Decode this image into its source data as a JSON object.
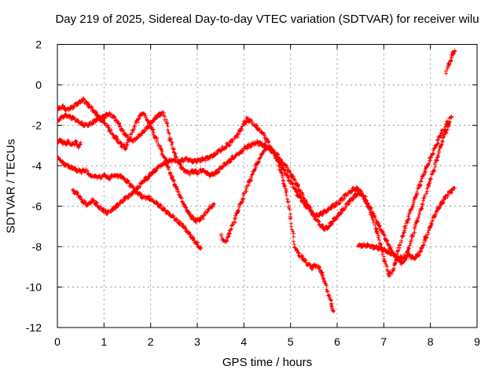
{
  "chart_data": {
    "type": "scatter",
    "title": "Day 219 of 2025, Sidereal Day-to-day VTEC variation (SDTVAR) for receiver wilu",
    "xlabel": "GPS time / hours",
    "ylabel": "SDTVAR / TECUs",
    "xlim": [
      0,
      9
    ],
    "ylim": [
      -12,
      2
    ],
    "xticks": [
      0,
      1,
      2,
      3,
      4,
      5,
      6,
      7,
      8,
      9
    ],
    "yticks": [
      2,
      0,
      -2,
      -4,
      -6,
      -8,
      -10,
      -12
    ],
    "grid": true,
    "legend": "none",
    "marker": "plus",
    "colors": {
      "data": "#ff0000",
      "grid": "#9a9a9a",
      "axis": "#000000",
      "background": "#ffffff",
      "text": "#000000"
    },
    "series": [
      {
        "name": "trace-1",
        "points": [
          [
            0,
            -1.2
          ],
          [
            0.1,
            -1.05
          ],
          [
            0.2,
            -1.2
          ],
          [
            0.3,
            -1.1
          ],
          [
            0.42,
            -0.9
          ],
          [
            0.55,
            -0.72
          ],
          [
            0.65,
            -0.95
          ],
          [
            0.78,
            -1.3
          ],
          [
            0.9,
            -1.6
          ],
          [
            1.0,
            -1.85
          ],
          [
            1.1,
            -2.15
          ],
          [
            1.2,
            -2.5
          ],
          [
            1.35,
            -2.9
          ],
          [
            1.45,
            -3.1
          ],
          [
            1.55,
            -2.6
          ],
          [
            1.65,
            -2.0
          ],
          [
            1.75,
            -1.55
          ],
          [
            1.82,
            -1.37
          ],
          [
            1.92,
            -1.7
          ],
          [
            2.02,
            -2.2
          ],
          [
            2.12,
            -2.7
          ],
          [
            2.22,
            -3.2
          ],
          [
            2.32,
            -3.8
          ],
          [
            2.42,
            -4.4
          ],
          [
            2.55,
            -5.1
          ],
          [
            2.7,
            -5.9
          ],
          [
            2.85,
            -6.45
          ],
          [
            2.95,
            -6.7
          ],
          [
            3.05,
            -6.65
          ],
          [
            3.15,
            -6.4
          ],
          [
            3.25,
            -6.1
          ],
          [
            3.35,
            -5.9
          ]
        ]
      },
      {
        "name": "trace-2",
        "points": [
          [
            0,
            -1.75
          ],
          [
            0.1,
            -1.6
          ],
          [
            0.2,
            -1.5
          ],
          [
            0.3,
            -1.6
          ],
          [
            0.4,
            -1.75
          ],
          [
            0.5,
            -1.9
          ],
          [
            0.6,
            -2.0
          ],
          [
            0.7,
            -1.9
          ],
          [
            0.8,
            -1.75
          ],
          [
            0.9,
            -1.65
          ],
          [
            1.0,
            -1.55
          ],
          [
            1.1,
            -1.4
          ],
          [
            1.2,
            -1.55
          ],
          [
            1.3,
            -1.9
          ],
          [
            1.4,
            -2.3
          ],
          [
            1.5,
            -2.6
          ],
          [
            1.6,
            -2.75
          ],
          [
            1.7,
            -2.6
          ],
          [
            1.8,
            -2.4
          ],
          [
            1.9,
            -2.15
          ],
          [
            2.0,
            -1.9
          ],
          [
            2.1,
            -1.6
          ],
          [
            2.2,
            -1.45
          ],
          [
            2.25,
            -1.4
          ],
          [
            2.32,
            -1.7
          ],
          [
            2.4,
            -2.6
          ],
          [
            2.5,
            -3.3
          ],
          [
            2.6,
            -3.9
          ],
          [
            2.7,
            -4.2
          ],
          [
            2.8,
            -4.35
          ],
          [
            2.9,
            -4.25
          ],
          [
            3.0,
            -4.3
          ],
          [
            3.1,
            -4.2
          ],
          [
            3.2,
            -4.35
          ],
          [
            3.3,
            -4.45
          ],
          [
            3.4,
            -4.3
          ],
          [
            3.5,
            -4.05
          ],
          [
            3.6,
            -3.9
          ],
          [
            3.7,
            -3.7
          ],
          [
            3.8,
            -3.5
          ],
          [
            3.9,
            -3.35
          ],
          [
            4.0,
            -3.15
          ],
          [
            4.1,
            -3.0
          ],
          [
            4.2,
            -2.9
          ],
          [
            4.3,
            -2.85
          ],
          [
            4.4,
            -2.95
          ],
          [
            4.5,
            -3.1
          ],
          [
            4.6,
            -3.25
          ],
          [
            4.7,
            -3.45
          ],
          [
            4.85,
            -3.9
          ],
          [
            5.0,
            -4.4
          ],
          [
            5.15,
            -5.0
          ],
          [
            5.3,
            -5.7
          ],
          [
            5.45,
            -6.3
          ],
          [
            5.6,
            -6.8
          ],
          [
            5.7,
            -7.1
          ],
          [
            5.8,
            -7.0
          ],
          [
            5.95,
            -6.6
          ],
          [
            6.1,
            -6.2
          ],
          [
            6.25,
            -5.75
          ],
          [
            6.4,
            -5.4
          ],
          [
            6.5,
            -5.35
          ],
          [
            6.6,
            -5.7
          ],
          [
            6.75,
            -6.3
          ],
          [
            6.9,
            -7.0
          ],
          [
            7.05,
            -7.7
          ],
          [
            7.2,
            -8.35
          ],
          [
            7.32,
            -8.7
          ],
          [
            7.4,
            -8.8
          ],
          [
            7.5,
            -8.3
          ],
          [
            7.6,
            -7.5
          ],
          [
            7.7,
            -6.7
          ],
          [
            7.8,
            -6.0
          ],
          [
            7.9,
            -5.3
          ],
          [
            8.0,
            -4.6
          ],
          [
            8.1,
            -3.9
          ],
          [
            8.2,
            -3.1
          ],
          [
            8.3,
            -2.4
          ],
          [
            8.4,
            -1.9
          ]
        ]
      },
      {
        "name": "trace-3",
        "points": [
          [
            0,
            -2.8
          ],
          [
            0.07,
            -2.72
          ],
          [
            0.14,
            -2.9
          ],
          [
            0.22,
            -2.78
          ],
          [
            0.3,
            -2.95
          ],
          [
            0.38,
            -2.82
          ],
          [
            0.45,
            -3.0
          ],
          [
            0.5,
            -2.9
          ]
        ]
      },
      {
        "name": "trace-4",
        "points": [
          [
            0,
            -3.6
          ],
          [
            0.15,
            -3.9
          ],
          [
            0.3,
            -4.1
          ],
          [
            0.45,
            -4.25
          ],
          [
            0.6,
            -4.2
          ],
          [
            0.7,
            -4.45
          ],
          [
            0.8,
            -4.5
          ],
          [
            0.9,
            -4.55
          ],
          [
            1.0,
            -4.45
          ],
          [
            1.1,
            -4.6
          ],
          [
            1.2,
            -4.45
          ],
          [
            1.35,
            -4.5
          ],
          [
            1.5,
            -4.8
          ],
          [
            1.65,
            -5.15
          ],
          [
            1.8,
            -5.5
          ],
          [
            1.95,
            -5.6
          ],
          [
            2.1,
            -5.8
          ],
          [
            2.25,
            -6.1
          ],
          [
            2.4,
            -6.4
          ],
          [
            2.55,
            -6.65
          ],
          [
            2.7,
            -7.0
          ],
          [
            2.85,
            -7.45
          ],
          [
            3.0,
            -7.9
          ],
          [
            3.07,
            -8.05
          ]
        ]
      },
      {
        "name": "trace-5",
        "points": [
          [
            3.5,
            -7.4
          ],
          [
            3.57,
            -7.8
          ],
          [
            3.65,
            -7.5
          ],
          [
            3.8,
            -6.6
          ],
          [
            3.95,
            -5.7
          ],
          [
            4.1,
            -4.8
          ],
          [
            4.25,
            -4.0
          ],
          [
            4.4,
            -3.3
          ],
          [
            4.5,
            -3.05
          ],
          [
            4.6,
            -3.2
          ],
          [
            4.7,
            -3.7
          ],
          [
            4.8,
            -4.4
          ],
          [
            4.9,
            -5.3
          ],
          [
            5.0,
            -6.6
          ],
          [
            5.07,
            -7.9
          ],
          [
            5.15,
            -8.3
          ],
          [
            5.25,
            -8.55
          ],
          [
            5.35,
            -8.8
          ],
          [
            5.45,
            -9.0
          ],
          [
            5.52,
            -8.9
          ],
          [
            5.6,
            -9.0
          ],
          [
            5.7,
            -9.5
          ],
          [
            5.8,
            -10.3
          ],
          [
            5.86,
            -10.8
          ],
          [
            5.92,
            -11.25
          ]
        ]
      },
      {
        "name": "trace-6",
        "points": [
          [
            0.32,
            -5.2
          ],
          [
            0.45,
            -5.45
          ],
          [
            0.55,
            -5.8
          ],
          [
            0.65,
            -5.9
          ],
          [
            0.75,
            -5.7
          ],
          [
            0.85,
            -5.95
          ],
          [
            0.95,
            -6.15
          ],
          [
            1.05,
            -6.3
          ],
          [
            1.15,
            -6.2
          ],
          [
            1.25,
            -6.0
          ],
          [
            1.35,
            -5.8
          ],
          [
            1.5,
            -5.5
          ],
          [
            1.6,
            -5.35
          ],
          [
            1.72,
            -5.1
          ],
          [
            1.85,
            -4.7
          ],
          [
            2.0,
            -4.4
          ],
          [
            2.15,
            -4.05
          ],
          [
            2.3,
            -3.8
          ],
          [
            2.45,
            -3.7
          ],
          [
            2.6,
            -3.8
          ],
          [
            2.75,
            -3.65
          ],
          [
            2.9,
            -3.75
          ],
          [
            3.05,
            -3.7
          ],
          [
            3.2,
            -3.6
          ],
          [
            3.35,
            -3.45
          ],
          [
            3.5,
            -3.2
          ],
          [
            3.65,
            -2.95
          ],
          [
            3.8,
            -2.6
          ],
          [
            3.9,
            -2.3
          ],
          [
            4.0,
            -1.85
          ],
          [
            4.07,
            -1.68
          ],
          [
            4.15,
            -1.8
          ],
          [
            4.25,
            -2.05
          ],
          [
            4.4,
            -2.4
          ],
          [
            4.55,
            -3.0
          ],
          [
            4.7,
            -3.6
          ],
          [
            4.85,
            -4.2
          ],
          [
            5.0,
            -4.8
          ],
          [
            5.15,
            -5.4
          ],
          [
            5.3,
            -5.9
          ],
          [
            5.45,
            -6.3
          ],
          [
            5.55,
            -6.45
          ],
          [
            5.7,
            -6.3
          ],
          [
            5.85,
            -6.05
          ],
          [
            6.0,
            -5.85
          ],
          [
            6.15,
            -5.5
          ],
          [
            6.3,
            -5.2
          ],
          [
            6.42,
            -5.1
          ],
          [
            6.55,
            -5.4
          ],
          [
            6.7,
            -6.2
          ],
          [
            6.85,
            -7.3
          ],
          [
            7.0,
            -8.6
          ],
          [
            7.1,
            -9.4
          ],
          [
            7.2,
            -9.1
          ],
          [
            7.3,
            -8.2
          ],
          [
            7.45,
            -7.0
          ],
          [
            7.6,
            -6.0
          ],
          [
            7.75,
            -5.0
          ],
          [
            7.9,
            -4.1
          ],
          [
            8.05,
            -3.3
          ],
          [
            8.2,
            -2.5
          ],
          [
            8.35,
            -1.9
          ],
          [
            8.45,
            -1.55
          ]
        ]
      },
      {
        "name": "trace-7",
        "points": [
          [
            6.45,
            -7.95
          ],
          [
            6.6,
            -7.9
          ],
          [
            6.8,
            -8.0
          ],
          [
            7.0,
            -8.15
          ],
          [
            7.2,
            -8.4
          ],
          [
            7.35,
            -8.55
          ],
          [
            7.5,
            -8.4
          ],
          [
            7.62,
            -8.55
          ],
          [
            7.7,
            -8.45
          ],
          [
            7.78,
            -8.25
          ],
          [
            7.9,
            -7.5
          ],
          [
            8.0,
            -6.9
          ],
          [
            8.1,
            -6.35
          ],
          [
            8.2,
            -5.95
          ],
          [
            8.3,
            -5.6
          ],
          [
            8.4,
            -5.3
          ],
          [
            8.5,
            -5.1
          ]
        ]
      },
      {
        "name": "trace-8",
        "points": [
          [
            8.33,
            0.7
          ],
          [
            8.38,
            1.0
          ],
          [
            8.43,
            1.3
          ],
          [
            8.48,
            1.6
          ],
          [
            8.52,
            1.75
          ]
        ]
      }
    ]
  }
}
